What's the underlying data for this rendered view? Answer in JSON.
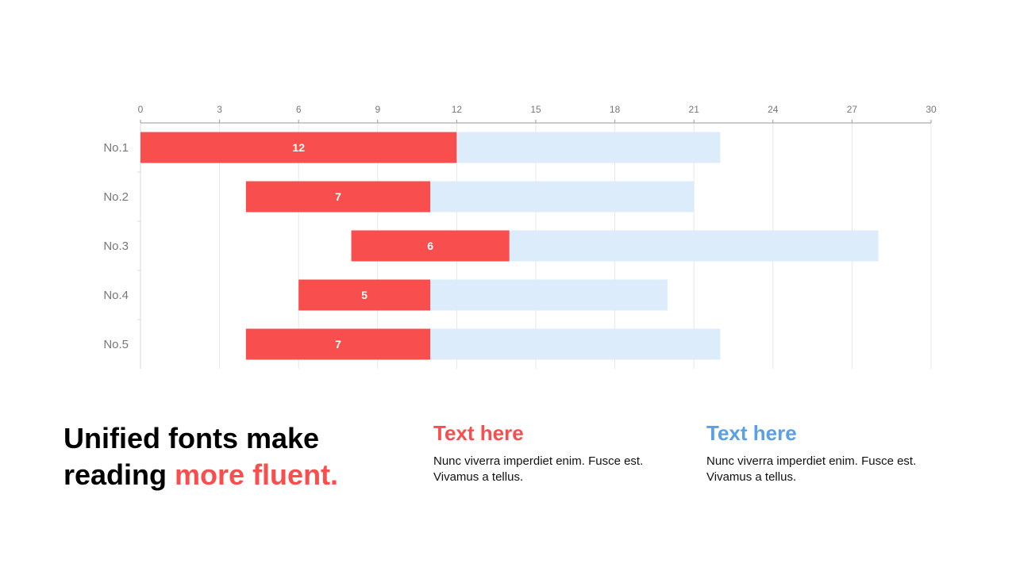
{
  "chart_data": {
    "type": "bar",
    "orientation": "horizontal",
    "stacked": true,
    "categories": [
      "No.1",
      "No.2",
      "No.3",
      "No.4",
      "No.5"
    ],
    "series": [
      {
        "values": [
          0,
          4,
          8,
          6,
          4
        ],
        "color": "transparent"
      },
      {
        "values": [
          12,
          7,
          6,
          5,
          7
        ],
        "color": "#f94e4e",
        "labeled": true
      },
      {
        "values": [
          10,
          10,
          14,
          9,
          11
        ],
        "color": "#ddecfa"
      }
    ],
    "xticks": [
      0,
      3,
      6,
      9,
      12,
      15,
      18,
      21,
      24,
      27,
      30
    ],
    "xlim": [
      0,
      30
    ],
    "x_axis_position": "top",
    "grid": true
  },
  "headline": {
    "line1": "Unified fonts make",
    "line2_plain": "reading ",
    "line2_accent": "more fluent."
  },
  "blocks": [
    {
      "title": "Text here",
      "body": "Nunc viverra imperdiet enim. Fusce est. Vivamus a tellus.",
      "color": "#f94e4e"
    },
    {
      "title": "Text here",
      "body": "Nunc viverra imperdiet enim. Fusce est. Vivamus a tellus.",
      "color": "#5aa0e6"
    }
  ],
  "colors": {
    "accent": "#f94e4e",
    "secondary": "#5aa0e6"
  }
}
